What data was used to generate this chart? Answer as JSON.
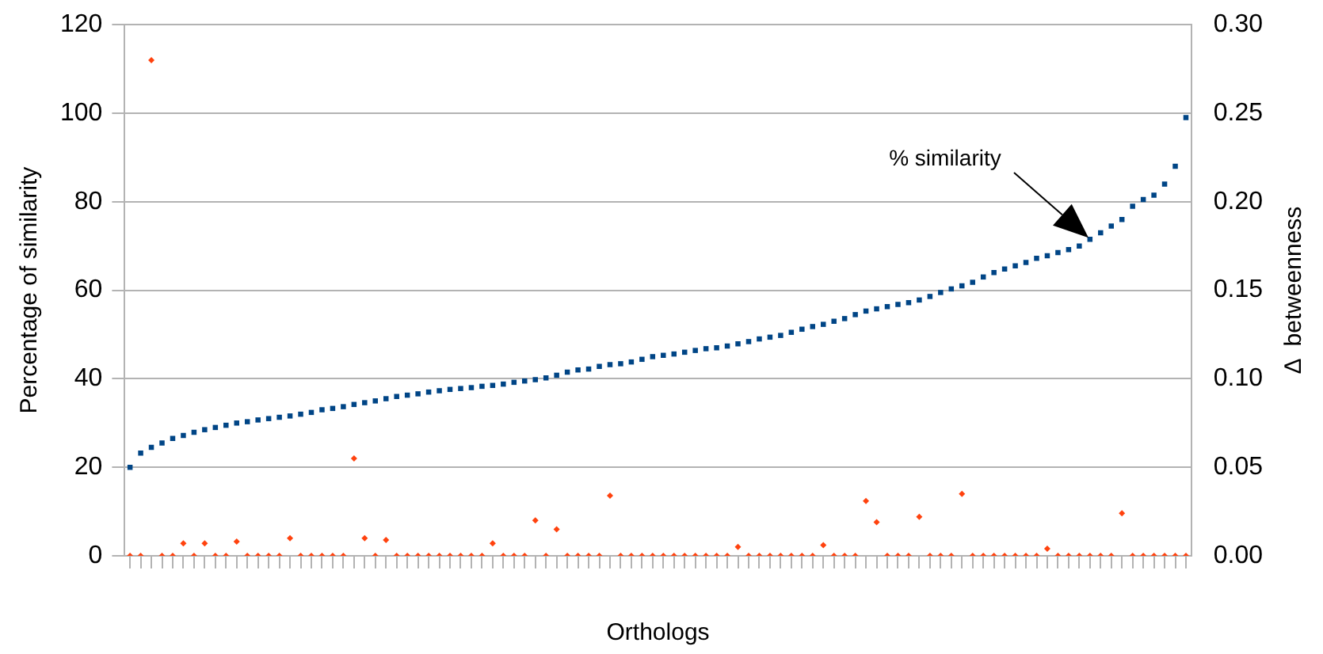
{
  "chart_data": {
    "type": "scatter",
    "xlabel": "Orthologs",
    "ylabel": "Percentage of similarity",
    "y2label": "Δ  betweenness",
    "categories": [
      null,
      null,
      null,
      null,
      null,
      null,
      null,
      null,
      null,
      null,
      null,
      null,
      null,
      null,
      null,
      null,
      null,
      null,
      null,
      null,
      null,
      null,
      null,
      null,
      null,
      null,
      null,
      null,
      null,
      null,
      null,
      null,
      null,
      null,
      null,
      null,
      null,
      null,
      null,
      null,
      null,
      null,
      null,
      null,
      null,
      null,
      null,
      null,
      null,
      null,
      null,
      null,
      null,
      null,
      null,
      null,
      null,
      null,
      null,
      null,
      null,
      null,
      null,
      null,
      null,
      null,
      null,
      null,
      null,
      null,
      null,
      null,
      null,
      null,
      null,
      null,
      null,
      null,
      null,
      null,
      null,
      null,
      null,
      null,
      null,
      null,
      null,
      null,
      null,
      null,
      null,
      null,
      null,
      null,
      null,
      null,
      null,
      null,
      null,
      null
    ],
    "series": [
      {
        "color": "#004586",
        "marker": "square",
        "values": [
          20,
          23.2,
          24.5,
          25.5,
          26.5,
          27.2,
          27.9,
          28.5,
          29,
          29.5,
          30,
          30.3,
          30.7,
          31,
          31.3,
          31.6,
          32,
          32.4,
          33,
          33.3,
          33.7,
          34.2,
          34.6,
          35,
          35.5,
          36,
          36.3,
          36.6,
          37,
          37.3,
          37.6,
          37.8,
          38,
          38.3,
          38.5,
          38.8,
          39.2,
          39.5,
          39.8,
          40.2,
          40.8,
          41.5,
          42,
          42.2,
          42.8,
          43.2,
          43.4,
          43.8,
          44.4,
          45,
          45.3,
          45.6,
          46,
          46.4,
          46.8,
          47,
          47.4,
          47.9,
          48.4,
          49,
          49.4,
          49.8,
          50.5,
          51.2,
          51.8,
          52.3,
          53,
          53.6,
          54.5,
          55.3,
          55.8,
          56.3,
          56.8,
          57.2,
          57.8,
          58.6,
          59.5,
          60.3,
          61,
          61.8,
          63,
          64,
          64.8,
          65.5,
          66.3,
          67.2,
          67.8,
          68.5,
          69.2,
          70,
          71.5,
          73,
          74.5,
          76,
          79,
          80.5,
          81.5,
          84,
          88,
          99
        ]
      },
      {
        "color": "#ff420e",
        "marker": "diamond",
        "axis": "y2",
        "values": [
          0,
          0,
          0.28,
          0,
          0,
          0.007,
          0,
          0.007,
          0,
          0,
          0.008,
          0,
          0,
          0,
          0,
          0.01,
          0,
          0,
          0,
          0,
          0,
          0.055,
          0.01,
          0,
          0.009,
          0,
          0,
          0,
          0,
          0,
          0,
          0,
          0,
          0,
          0.007,
          0,
          0,
          0,
          0.02,
          0,
          0.015,
          0,
          0,
          0,
          0,
          0.034,
          0,
          0,
          0,
          0,
          0,
          0,
          0,
          0,
          0,
          0,
          0,
          0.005,
          0,
          0,
          0,
          0,
          0,
          0,
          0,
          0.006,
          0,
          0,
          0,
          0.031,
          0.019,
          0,
          0,
          0,
          0.022,
          0,
          0,
          0,
          0.035,
          0,
          0,
          0,
          0,
          0,
          0,
          0,
          0.004,
          0,
          0,
          0,
          0,
          0,
          0,
          0.024,
          0,
          0,
          0,
          0,
          0,
          0
        ]
      }
    ],
    "ylim": [
      0,
      120
    ],
    "yticks": [
      0,
      20,
      40,
      60,
      80,
      100,
      120
    ],
    "y2lim": [
      0,
      0.3
    ],
    "y2ticks": [
      {
        "value": 0,
        "label": "0.00"
      },
      {
        "value": 0.05,
        "label": "0.05"
      },
      {
        "value": 0.1,
        "label": "0.10"
      },
      {
        "value": 0.15,
        "label": "0.15"
      },
      {
        "value": 0.2,
        "label": "0.20"
      },
      {
        "value": 0.25,
        "label": "0.25"
      },
      {
        "value": 0.3,
        "label": "0.30"
      }
    ],
    "grid": "y",
    "legend": false,
    "annotations": [
      "% similarity"
    ]
  }
}
